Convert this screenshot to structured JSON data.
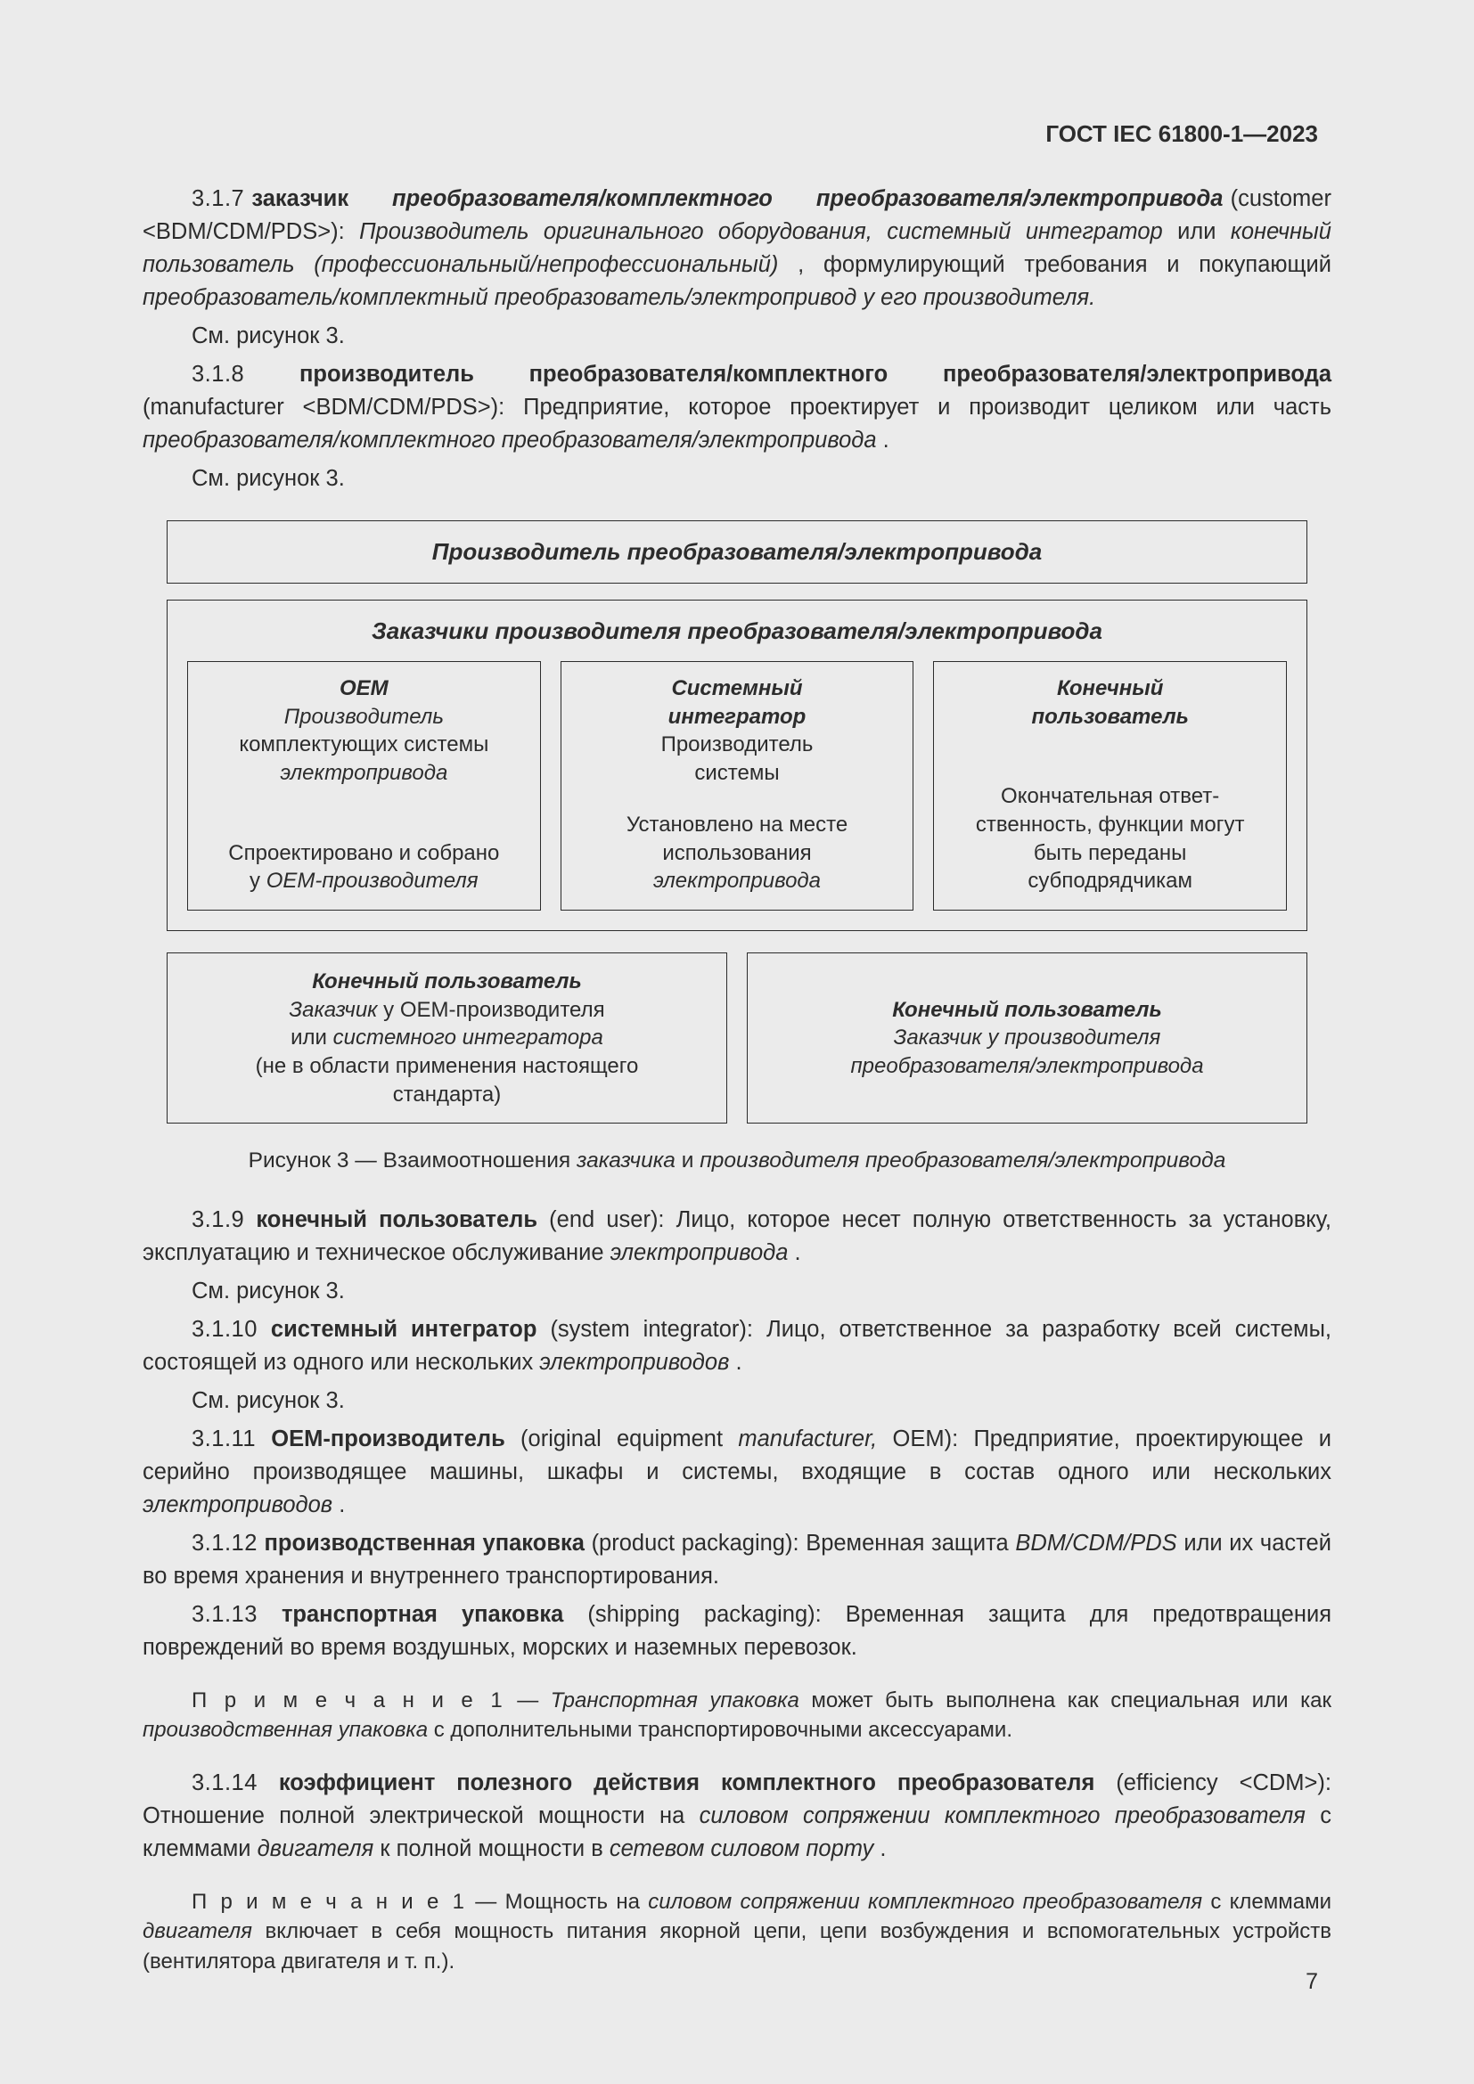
{
  "header": {
    "standard": "ГОСТ IEC 61800-1—2023"
  },
  "page_number": "7",
  "entries": {
    "e317": {
      "num": "3.1.7",
      "term": "заказчик",
      "term2": "преобразователя/комплектного",
      "term3": "преобразователя/электропривода",
      "paren": "(customer <BDM/CDM/PDS>): ",
      "def_italic1": "Производитель оригинального оборудования, системный интегратор",
      "def_plain1": " или ",
      "def_italic2": "конечный пользователь (профессиональный/непрофессиональный)",
      "def_plain2": ", формулирующий требования и покупающий ",
      "def_italic3": "преобразователь/комплектный преобразователь/электропривод у его производителя.",
      "see": "См. рисунок 3."
    },
    "e318": {
      "num": "3.1.8",
      "term": "производитель преобразователя/комплектного преобразователя/электропривода",
      "paren": "(manufacturer <BDM/CDM/PDS>): ",
      "def_plain": "Предприятие, которое проектирует и производит целиком или часть ",
      "def_italic": "преобразователя/комплектного преобразователя/электропривода",
      "def_end": ".",
      "see": "См. рисунок 3."
    },
    "e319": {
      "num": "3.1.9",
      "term": "конечный пользователь",
      "paren": " (end user): ",
      "def_plain": "Лицо, которое несет полную ответственность за установку, эксплуатацию и техническое обслуживание ",
      "def_italic": "электропривода",
      "def_end": ".",
      "see": "См. рисунок 3."
    },
    "e3110": {
      "num": "3.1.10",
      "term": "системный интегратор",
      "paren": " (system integrator): ",
      "def_plain": "Лицо, ответственное за разработку всей системы, состоящей из одного или нескольких ",
      "def_italic": "электроприводов",
      "def_end": ".",
      "see": "См. рисунок 3."
    },
    "e3111": {
      "num": "3.1.11",
      "term": "ОЕМ-производитель",
      "paren_a": " (original equipment ",
      "paren_it": "manufacturer,",
      "paren_b": " ОЕМ): ",
      "def_plain": "Предприятие, проектирующее и серийно производящее машины, шкафы и системы, входящие в состав одного или нескольких ",
      "def_italic": "электроприводов",
      "def_end": "."
    },
    "e3112": {
      "num": "3.1.12",
      "term": "производственная упаковка",
      "paren": " (product packaging): ",
      "def_plain": "Временная защита ",
      "def_italic": "BDM/CDM/PDS",
      "def_end": " или их частей во время хранения и внутреннего транспортирования."
    },
    "e3113": {
      "num": "3.1.13",
      "term": "транспортная упаковка",
      "paren": " (shipping packaging): ",
      "def": "Временная защита для предотвращения повреждений во время воздушных, морских и наземных перевозок."
    },
    "note1": {
      "label": "П р и м е ч а н и е   1",
      "sep": " — ",
      "it1": "Транспортная упаковка",
      "plain": " может быть выполнена как специальная или как ",
      "it2": "производственная упаковка",
      "end": " с дополнительными транспортировочными аксессуарами."
    },
    "e3114": {
      "num": "3.1.14",
      "term": "коэффициент полезного действия комплектного преобразователя",
      "paren": " (efficiency <CDM>): ",
      "def_a": "Отношение полной электрической мощности на ",
      "def_it1": "силовом сопряжении комплектного преобразователя",
      "def_b": " с клеммами ",
      "def_it2": "двигателя",
      "def_c": " к полной мощности в ",
      "def_it3": "сетевом силовом порту",
      "def_end": "."
    },
    "note2": {
      "label": "П р и м е ч а н и е   1",
      "sep": " — ",
      "a": "Мощность на ",
      "it1": "силовом сопряжении комплектного преобразователя",
      "b": " с клеммами ",
      "it2": "двигателя",
      "c": " включает в себя мощность питания якорной цепи, цепи возбуждения и вспомогательных устройств (вентилятора двигателя и т. п.)."
    }
  },
  "diagram": {
    "top_title": "Производитель преобразователя/электропривода",
    "customers_title": "Заказчики производителя преобразователя/электропривода",
    "col1": {
      "title": "ОЕМ",
      "sub_it": "Производитель",
      "sub2": "комплектующих системы",
      "sub3_it": "электропривода",
      "bottom_a": "Спроектировано и собрано",
      "bottom_b": "у ",
      "bottom_it": "ОЕМ-производителя"
    },
    "col2": {
      "title": "Системный",
      "title2": "интегратор",
      "sub1": "Производитель",
      "sub2": "системы",
      "bottom_a": "Установлено на месте",
      "bottom_b": "использования",
      "bottom_it": "электропривода"
    },
    "col3": {
      "title": "Конечный",
      "title2": "пользователь",
      "bottom_a": "Окончательная ответ-",
      "bottom_b": "ственность, функции могут",
      "bottom_c": "быть переданы",
      "bottom_d": "субподрядчикам"
    },
    "row2_left": {
      "title": "Конечный пользователь",
      "l1_it": "Заказчик",
      "l1_plain": " у ОЕМ-производителя",
      "l2_a": "или ",
      "l2_it": "системного интегратора",
      "l3": "(не в области применения настоящего",
      "l4": "стандарта)"
    },
    "row2_right": {
      "title": "Конечный пользователь",
      "l1_it": "Заказчик у производителя",
      "l2_it": "преобразователя/электропривода"
    },
    "caption_a": "Рисунок 3 — Взаимоотношения ",
    "caption_it1": "заказчика",
    "caption_b": " и ",
    "caption_it2": "производителя преобразователя/электропривода"
  }
}
